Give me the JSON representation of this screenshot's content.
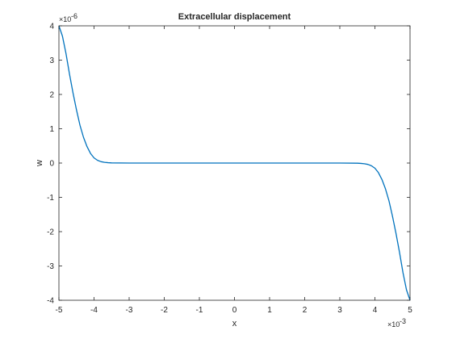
{
  "chart_data": {
    "type": "line",
    "title": "Extracellular displacement",
    "xlabel": "x",
    "ylabel": "w",
    "x_exponent_label": "×10",
    "x_exponent_power": "-3",
    "y_exponent_label": "×10",
    "y_exponent_power": "-6",
    "xlim": [
      -0.005,
      0.005
    ],
    "ylim": [
      -4e-06,
      4e-06
    ],
    "x_ticks": [
      -0.005,
      -0.004,
      -0.003,
      -0.002,
      -0.001,
      0,
      0.001,
      0.002,
      0.003,
      0.004,
      0.005
    ],
    "x_tick_labels": [
      "-5",
      "-4",
      "-3",
      "-2",
      "-1",
      "0",
      "1",
      "2",
      "3",
      "4",
      "5"
    ],
    "y_ticks": [
      -4e-06,
      -3e-06,
      -2e-06,
      -1e-06,
      0,
      1e-06,
      2e-06,
      3e-06,
      4e-06
    ],
    "y_tick_labels": [
      "-4",
      "-3",
      "-2",
      "-1",
      "0",
      "1",
      "2",
      "3",
      "4"
    ],
    "grid": false,
    "line_color": "#0072BD",
    "series": [
      {
        "x": [
          -0.005,
          -0.0049,
          -0.0048,
          -0.0047,
          -0.0046,
          -0.0045,
          -0.0044,
          -0.0043,
          -0.0042,
          -0.0041,
          -0.004,
          -0.0039,
          -0.0038,
          -0.0037,
          -0.0036,
          -0.0035,
          -0.003,
          -0.002,
          -0.001,
          0,
          0.001,
          0.002,
          0.003,
          0.0035,
          0.0036,
          0.0037,
          0.0038,
          0.0039,
          0.004,
          0.0041,
          0.0042,
          0.0043,
          0.0044,
          0.0045,
          0.0046,
          0.0047,
          0.0048,
          0.0049,
          0.005
        ],
        "y": [
          4e-06,
          3.7e-06,
          3.2e-06,
          2.6e-06,
          2.05e-06,
          1.55e-06,
          1.1e-06,
          7.5e-07,
          4.8e-07,
          2.8e-07,
          1.5e-07,
          8e-08,
          4e-08,
          2e-08,
          1e-08,
          5e-09,
          0,
          0,
          0,
          0,
          0,
          0,
          0,
          -5e-09,
          -1e-08,
          -2e-08,
          -4e-08,
          -8e-08,
          -1.5e-07,
          -2.8e-07,
          -4.8e-07,
          -7.5e-07,
          -1.1e-06,
          -1.55e-06,
          -2.05e-06,
          -2.6e-06,
          -3.2e-06,
          -3.7e-06,
          -4e-06
        ]
      }
    ]
  }
}
